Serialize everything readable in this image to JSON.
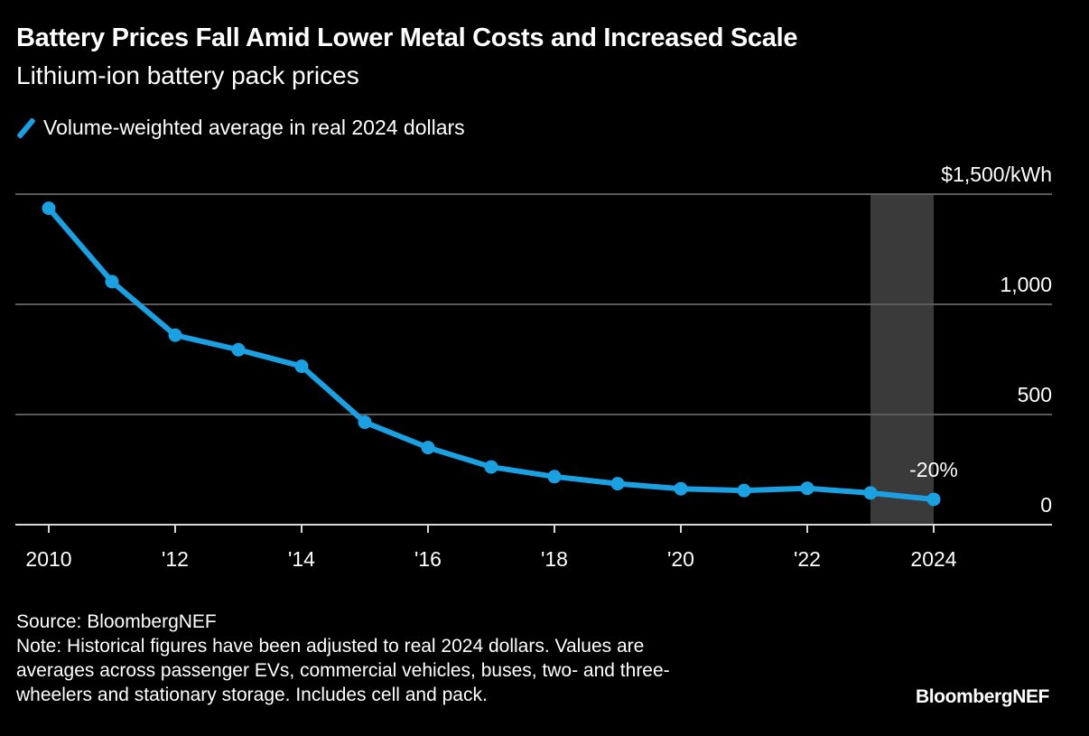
{
  "header": {
    "title": "Battery Prices Fall Amid Lower Metal Costs and Increased Scale",
    "subtitle": "Lithium-ion battery pack prices"
  },
  "legend": {
    "label": "Volume-weighted average in real 2024 dollars",
    "color": "#1ba1e2"
  },
  "footer": {
    "source": "Source: BloombergNEF",
    "note_lines": [
      "Note: Historical figures have been adjusted to real 2024 dollars. Values are",
      "averages across passenger EVs, commercial vehicles, buses, two- and three-",
      "wheelers and stationary storage. Includes cell and pack."
    ],
    "brand": "BloombergNEF"
  },
  "chart_data": {
    "type": "line",
    "title": "Battery Prices Fall Amid Lower Metal Costs and Increased Scale",
    "subtitle": "Lithium-ion battery pack prices",
    "xlabel": "",
    "ylabel": "$/kWh",
    "x": [
      2010,
      2011,
      2012,
      2013,
      2014,
      2015,
      2016,
      2017,
      2018,
      2019,
      2020,
      2021,
      2022,
      2023,
      2024
    ],
    "series": [
      {
        "name": "Volume-weighted average in real 2024 dollars",
        "color": "#1ba1e2",
        "values": [
          1436,
          1103,
          860,
          794,
          719,
          465,
          350,
          262,
          218,
          186,
          163,
          155,
          165,
          144,
          115
        ]
      }
    ],
    "xlim": [
      2009.5,
      2025.8
    ],
    "ylim": [
      0,
      1500
    ],
    "y_ticks": [
      0,
      500,
      1000,
      1500
    ],
    "y_tick_labels": [
      "0",
      "500",
      "1,000",
      "$1,500/kWh"
    ],
    "x_ticks": [
      2010,
      2012,
      2014,
      2016,
      2018,
      2020,
      2022,
      2024
    ],
    "x_tick_labels": [
      "2010",
      "'12",
      "'14",
      "'16",
      "'18",
      "'20",
      "'22",
      "2024"
    ],
    "y_axis_side": "right",
    "grid": true,
    "highlight_band": {
      "from": 2023,
      "to": 2024,
      "color": "#3a3a3a"
    },
    "annotations": [
      {
        "x": 2024,
        "text": "-20%"
      }
    ],
    "legend_position": "top-left"
  }
}
